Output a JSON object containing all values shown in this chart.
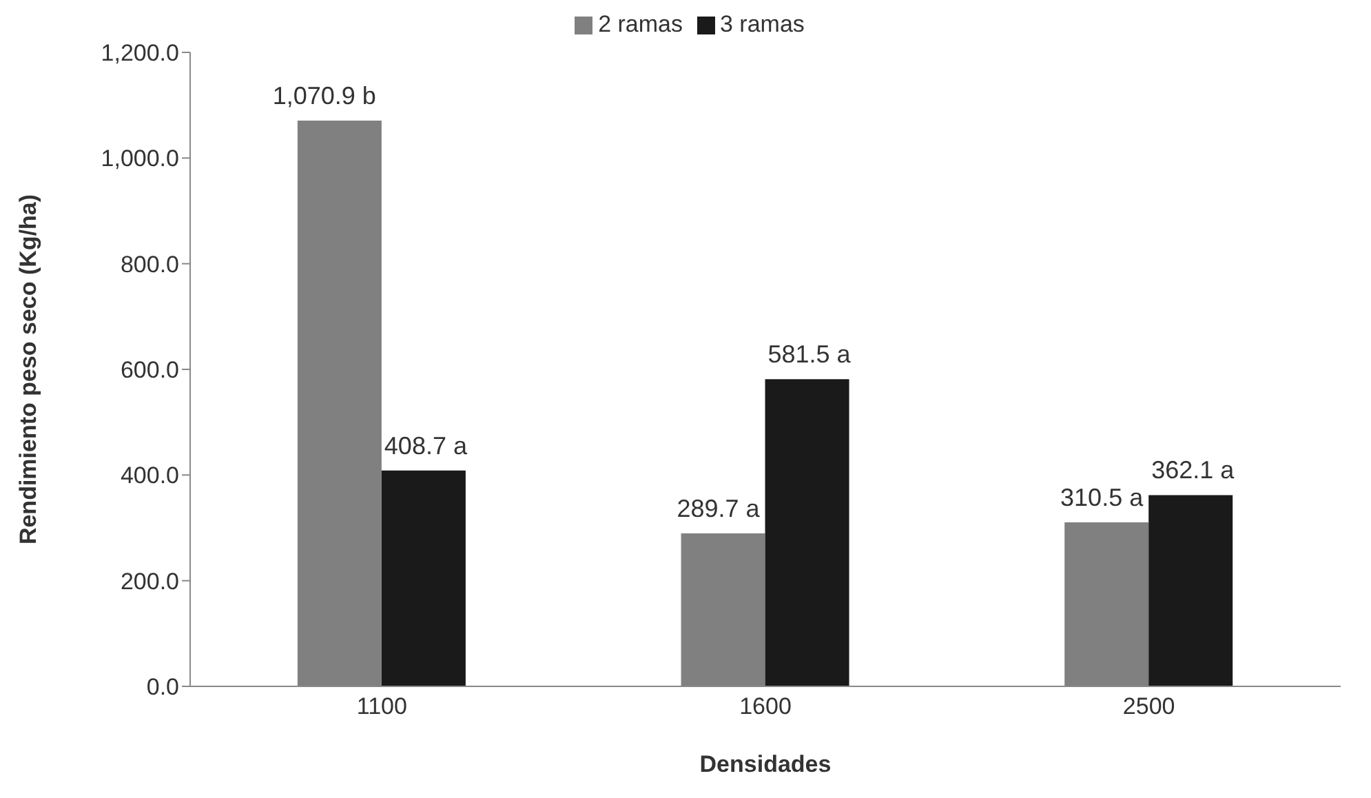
{
  "chart_data": {
    "type": "bar",
    "xlabel": "Densidades",
    "ylabel": "Rendimiento peso seco (Kg/ha)",
    "categories": [
      "1100",
      "1600",
      "2500"
    ],
    "series": [
      {
        "name": "2 ramas",
        "color": "#808080",
        "values": [
          1070.9,
          289.7,
          310.5
        ],
        "value_labels": [
          "1,070.9 b",
          "289.7 a",
          "310.5 a"
        ]
      },
      {
        "name": "3 ramas",
        "color": "#1a1a1a",
        "values": [
          408.7,
          581.5,
          362.1
        ],
        "value_labels": [
          "408.7 a",
          "581.5 a",
          "362.1 a"
        ]
      }
    ],
    "ylim": [
      0,
      1200
    ],
    "yticks": [
      {
        "value": 0,
        "label": "0.0"
      },
      {
        "value": 200,
        "label": "200.0"
      },
      {
        "value": 400,
        "label": "400.0"
      },
      {
        "value": 600,
        "label": "600.0"
      },
      {
        "value": 800,
        "label": "800.0"
      },
      {
        "value": 1000,
        "label": "1,000.0"
      },
      {
        "value": 1200,
        "label": "1,200.0"
      }
    ],
    "grid": false,
    "legend": "top"
  }
}
